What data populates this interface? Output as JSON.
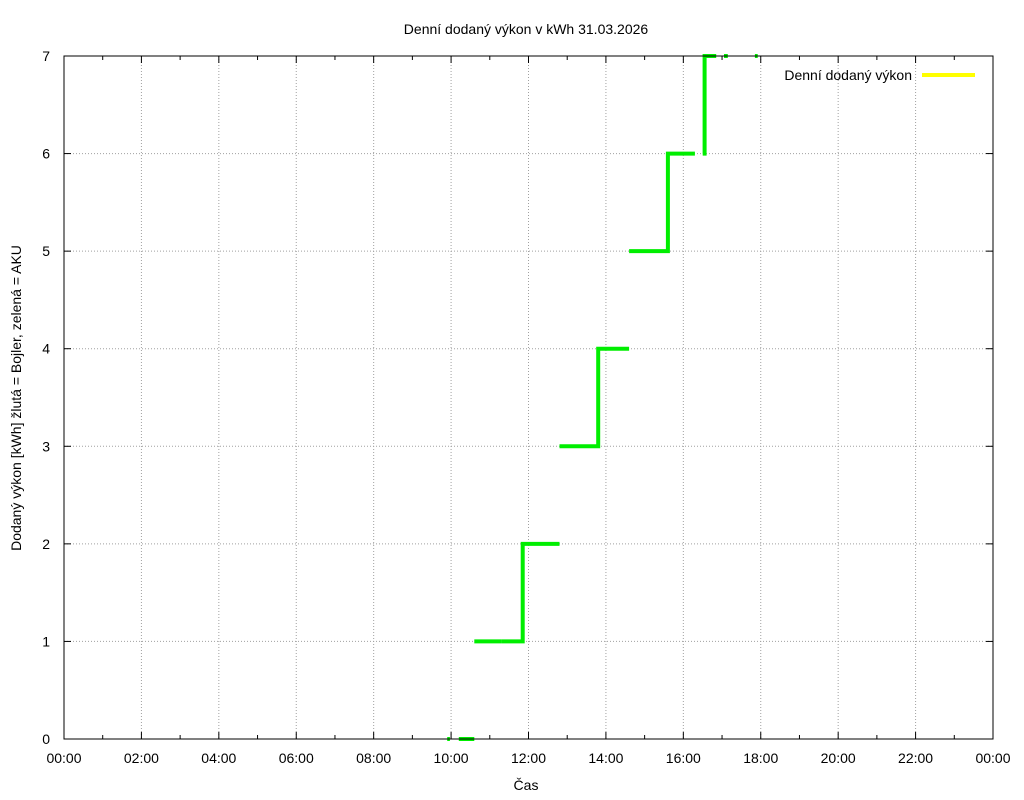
{
  "chart_data": {
    "type": "line",
    "title": "Denní dodaný výkon v kWh 31.03.2026",
    "xlabel": "Čas",
    "ylabel": "Dodaný výkon [kWh]  žlutá = Bojler, zelená = AKU",
    "xlim": [
      0,
      24
    ],
    "ylim": [
      0,
      7
    ],
    "x_ticks": [
      "00:00",
      "02:00",
      "04:00",
      "06:00",
      "08:00",
      "10:00",
      "12:00",
      "14:00",
      "16:00",
      "18:00",
      "20:00",
      "22:00",
      "00:00"
    ],
    "y_ticks": [
      "0",
      "1",
      "2",
      "3",
      "4",
      "5",
      "6",
      "7"
    ],
    "grid": true,
    "legend_position": "top-right",
    "series": [
      {
        "name": "Denní dodaný výkon",
        "color": "#ffff00",
        "segments": []
      },
      {
        "color": "#00ee00",
        "segments": [
          [
            [
              9.9,
              0
            ],
            [
              9.97,
              0
            ]
          ],
          [
            [
              10.2,
              0
            ],
            [
              10.6,
              0
            ]
          ],
          [
            [
              10.6,
              1
            ],
            [
              11.3,
              1
            ]
          ],
          [
            [
              11.3,
              1
            ],
            [
              11.85,
              1
            ],
            [
              11.85,
              2
            ],
            [
              12.8,
              2
            ]
          ],
          [
            [
              12.8,
              3
            ],
            [
              13.8,
              3
            ],
            [
              13.8,
              4
            ],
            [
              14.6,
              4
            ]
          ],
          [
            [
              14.6,
              5
            ],
            [
              15.6,
              5
            ],
            [
              15.6,
              6
            ],
            [
              16.3,
              6
            ]
          ],
          [
            [
              16.5,
              6
            ],
            [
              16.55,
              6
            ],
            [
              16.55,
              7
            ],
            [
              16.85,
              7
            ]
          ],
          [
            [
              17.05,
              7
            ],
            [
              17.15,
              7
            ]
          ],
          [
            [
              17.85,
              7
            ],
            [
              17.92,
              7
            ]
          ]
        ]
      }
    ]
  }
}
